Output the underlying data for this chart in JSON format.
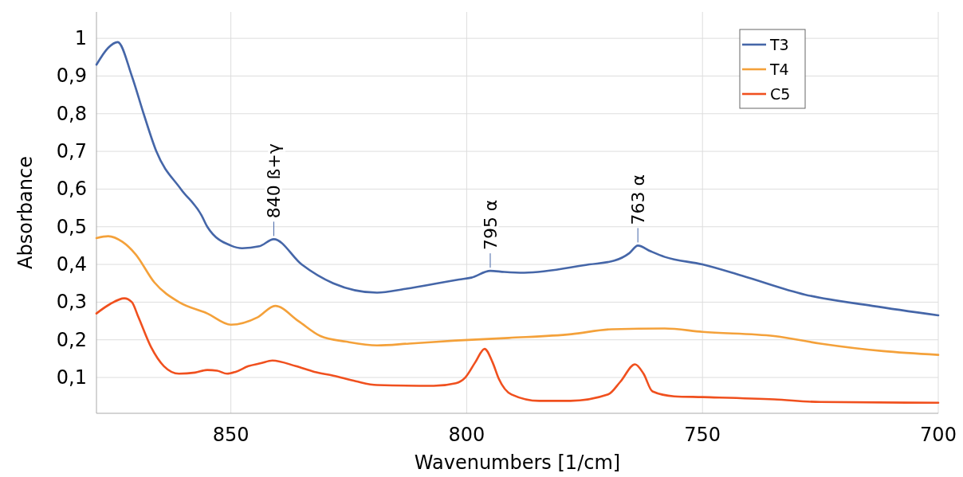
{
  "chart_data": {
    "type": "line",
    "xlabel": "Wavenumbers [1/cm]",
    "ylabel": "Absorbance",
    "xlim": [
      878.5,
      700
    ],
    "xticks": [
      850,
      800,
      750,
      700
    ],
    "ylim": [
      0.005,
      1.07
    ],
    "yticks": [
      {
        "value": 0.1,
        "label": "0,1"
      },
      {
        "value": 0.2,
        "label": "0,2"
      },
      {
        "value": 0.3,
        "label": "0,3"
      },
      {
        "value": 0.4,
        "label": "0,4"
      },
      {
        "value": 0.5,
        "label": "0,5"
      },
      {
        "value": 0.6,
        "label": "0,6"
      },
      {
        "value": 0.7,
        "label": "0,7"
      },
      {
        "value": 0.8,
        "label": "0,8"
      },
      {
        "value": 0.9,
        "label": "0,9"
      },
      {
        "value": 1,
        "label": "1"
      }
    ],
    "grid": true,
    "legend": "top right",
    "marker": "none",
    "line_style": "solid",
    "series": [
      {
        "name": "T3",
        "color": "#4566a8",
        "x": [
          878.5,
          876,
          874,
          871,
          868.5,
          865.8,
          860.6,
          856.2,
          855,
          850,
          847.6,
          844,
          840.9,
          835,
          828.3,
          819,
          813,
          801.6,
          799,
          795,
          792,
          787.8,
          774,
          768.7,
          765.5,
          763.7,
          761,
          758,
          750,
          741.6,
          728.3,
          714,
          700
        ],
        "values": [
          0.93,
          0.975,
          0.99,
          0.9,
          0.8,
          0.7,
          0.6,
          0.53,
          0.5,
          0.45,
          0.443,
          0.448,
          0.467,
          0.4,
          0.35,
          0.325,
          0.335,
          0.36,
          0.365,
          0.383,
          0.38,
          0.378,
          0.4,
          0.41,
          0.43,
          0.45,
          0.435,
          0.42,
          0.4,
          0.37,
          0.32,
          0.29,
          0.265
        ]
      },
      {
        "name": "T4",
        "color": "#f4a13a",
        "x": [
          878.5,
          876,
          873,
          870.2,
          866.2,
          861,
          855,
          850,
          844.3,
          840.6,
          835.7,
          831,
          825.5,
          819,
          812.2,
          802.3,
          791.1,
          777.8,
          769.2,
          758,
          750,
          734.8,
          725,
          711.7,
          700
        ],
        "values": [
          0.47,
          0.475,
          0.46,
          0.427,
          0.352,
          0.3,
          0.27,
          0.24,
          0.26,
          0.29,
          0.25,
          0.21,
          0.195,
          0.185,
          0.19,
          0.198,
          0.205,
          0.215,
          0.228,
          0.23,
          0.221,
          0.21,
          0.19,
          0.17,
          0.16
        ]
      },
      {
        "name": "C5",
        "color": "#f0501e",
        "x": [
          878.5,
          875.6,
          872.6,
          871,
          869.6,
          866.9,
          864.2,
          861,
          857.6,
          855,
          852.9,
          850.8,
          849,
          846.3,
          843.6,
          841.2,
          836.2,
          832.3,
          828.3,
          823.5,
          819,
          807,
          802.3,
          800.3,
          798.2,
          796.2,
          794.5,
          793.2,
          790.5,
          784.6,
          778,
          770,
          767.4,
          764.3,
          762.5,
          760.6,
          756,
          750,
          734.8,
          725,
          700
        ],
        "values": [
          0.27,
          0.295,
          0.31,
          0.3,
          0.26,
          0.18,
          0.13,
          0.11,
          0.113,
          0.12,
          0.118,
          0.11,
          0.115,
          0.13,
          0.138,
          0.145,
          0.13,
          0.115,
          0.105,
          0.09,
          0.08,
          0.078,
          0.085,
          0.1,
          0.14,
          0.176,
          0.14,
          0.097,
          0.055,
          0.038,
          0.038,
          0.055,
          0.089,
          0.135,
          0.11,
          0.063,
          0.05,
          0.048,
          0.042,
          0.035,
          0.033
        ]
      }
    ],
    "annotations": [
      {
        "text": "840 ß+γ",
        "x": 840.9,
        "y": 0.467
      },
      {
        "text": "795 α",
        "x": 795,
        "y": 0.383
      },
      {
        "text": "763 α",
        "x": 763.7,
        "y": 0.45
      }
    ]
  }
}
